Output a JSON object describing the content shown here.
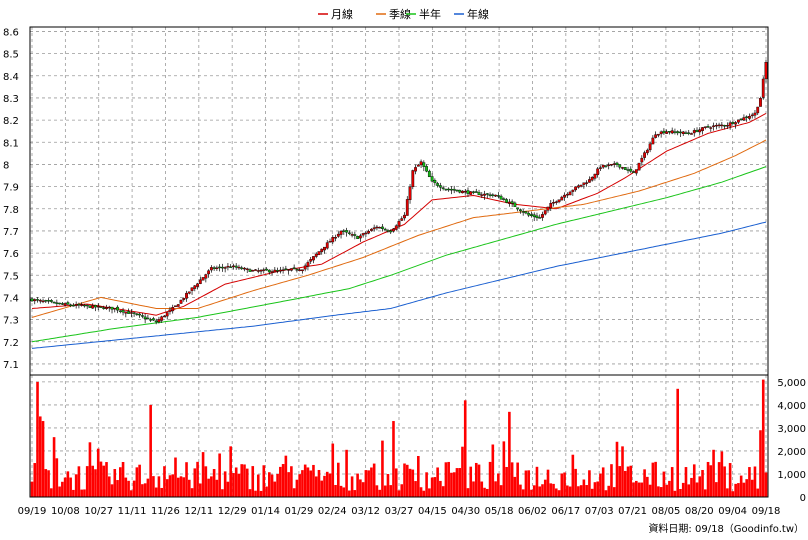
{
  "chart_data": {
    "type": "candlestick",
    "legend": [
      {
        "label": "月線",
        "color": "#d40000"
      },
      {
        "label": "季線",
        "color": "#e06a10"
      },
      {
        "label": "半年",
        "color": "#19c419"
      },
      {
        "label": "年線",
        "color": "#1a5fd0"
      }
    ],
    "price_axis": {
      "ylim": [
        7.05,
        8.62
      ],
      "ticks": [
        8.6,
        8.5,
        8.4,
        8.3,
        8.2,
        8.1,
        8.0,
        7.9,
        7.8,
        7.7,
        7.6,
        7.5,
        7.4,
        7.3,
        7.2,
        7.1
      ],
      "tick_labels": [
        "8.6",
        "8.5",
        "8.4",
        "8.3",
        "8.2",
        "8.1",
        "8",
        "7.9",
        "7.8",
        "7.7",
        "7.6",
        "7.5",
        "7.4",
        "7.3",
        "7.2",
        "7.1"
      ]
    },
    "volume_axis": {
      "ylim": [
        0,
        5300
      ],
      "ticks": [
        0,
        1000,
        2000,
        3000,
        4000,
        5000
      ],
      "tick_labels": [
        "0",
        "1,000",
        "2,000",
        "3,000",
        "4,000",
        "5,000"
      ]
    },
    "x_ticks": [
      "09/19",
      "10/08",
      "10/27",
      "11/11",
      "11/26",
      "12/11",
      "12/29",
      "01/14",
      "01/29",
      "02/24",
      "03/12",
      "03/27",
      "04/15",
      "04/30",
      "05/18",
      "06/02",
      "06/17",
      "07/03",
      "07/21",
      "08/05",
      "08/20",
      "09/04",
      "09/18"
    ],
    "close_anchors": [
      [
        0,
        7.39
      ],
      [
        10,
        7.37
      ],
      [
        20,
        7.36
      ],
      [
        30,
        7.35
      ],
      [
        38,
        7.32
      ],
      [
        45,
        7.29
      ],
      [
        52,
        7.36
      ],
      [
        58,
        7.44
      ],
      [
        65,
        7.53
      ],
      [
        72,
        7.54
      ],
      [
        80,
        7.52
      ],
      [
        90,
        7.52
      ],
      [
        98,
        7.53
      ],
      [
        105,
        7.62
      ],
      [
        112,
        7.7
      ],
      [
        118,
        7.67
      ],
      [
        125,
        7.72
      ],
      [
        130,
        7.7
      ],
      [
        135,
        7.77
      ],
      [
        138,
        7.97
      ],
      [
        141,
        8.01
      ],
      [
        145,
        7.92
      ],
      [
        150,
        7.89
      ],
      [
        160,
        7.87
      ],
      [
        168,
        7.86
      ],
      [
        174,
        7.82
      ],
      [
        180,
        7.77
      ],
      [
        184,
        7.76
      ],
      [
        188,
        7.82
      ],
      [
        195,
        7.88
      ],
      [
        202,
        7.93
      ],
      [
        206,
        7.99
      ],
      [
        212,
        8.0
      ],
      [
        218,
        7.96
      ],
      [
        223,
        8.07
      ],
      [
        226,
        8.14
      ],
      [
        230,
        8.15
      ],
      [
        238,
        8.14
      ],
      [
        245,
        8.17
      ],
      [
        252,
        8.18
      ],
      [
        258,
        8.21
      ],
      [
        262,
        8.23
      ],
      [
        264,
        8.3
      ],
      [
        266,
        8.46
      ]
    ],
    "ma_anchors": {
      "月線": [
        [
          0,
          7.35
        ],
        [
          20,
          7.37
        ],
        [
          45,
          7.32
        ],
        [
          55,
          7.36
        ],
        [
          70,
          7.46
        ],
        [
          90,
          7.52
        ],
        [
          105,
          7.55
        ],
        [
          120,
          7.65
        ],
        [
          135,
          7.73
        ],
        [
          145,
          7.84
        ],
        [
          160,
          7.86
        ],
        [
          175,
          7.82
        ],
        [
          190,
          7.8
        ],
        [
          205,
          7.87
        ],
        [
          215,
          7.94
        ],
        [
          230,
          8.06
        ],
        [
          245,
          8.14
        ],
        [
          260,
          8.19
        ],
        [
          266,
          8.23
        ]
      ],
      "季線": [
        [
          0,
          7.31
        ],
        [
          25,
          7.4
        ],
        [
          45,
          7.35
        ],
        [
          60,
          7.35
        ],
        [
          80,
          7.43
        ],
        [
          100,
          7.5
        ],
        [
          120,
          7.58
        ],
        [
          140,
          7.68
        ],
        [
          160,
          7.76
        ],
        [
          180,
          7.79
        ],
        [
          200,
          7.82
        ],
        [
          220,
          7.88
        ],
        [
          240,
          7.96
        ],
        [
          255,
          8.04
        ],
        [
          266,
          8.11
        ]
      ],
      "半年": [
        [
          0,
          7.2
        ],
        [
          30,
          7.26
        ],
        [
          60,
          7.31
        ],
        [
          90,
          7.38
        ],
        [
          115,
          7.44
        ],
        [
          130,
          7.5
        ],
        [
          150,
          7.59
        ],
        [
          170,
          7.66
        ],
        [
          190,
          7.73
        ],
        [
          210,
          7.79
        ],
        [
          230,
          7.85
        ],
        [
          250,
          7.92
        ],
        [
          266,
          7.99
        ]
      ],
      "年線": [
        [
          0,
          7.17
        ],
        [
          40,
          7.22
        ],
        [
          80,
          7.27
        ],
        [
          110,
          7.32
        ],
        [
          130,
          7.35
        ],
        [
          150,
          7.42
        ],
        [
          170,
          7.48
        ],
        [
          190,
          7.54
        ],
        [
          210,
          7.59
        ],
        [
          230,
          7.64
        ],
        [
          250,
          7.69
        ],
        [
          266,
          7.74
        ]
      ]
    },
    "volume_spikes": [
      [
        2,
        5000
      ],
      [
        3,
        3500
      ],
      [
        4,
        3300
      ],
      [
        8,
        2600
      ],
      [
        24,
        2100
      ],
      [
        43,
        4000
      ],
      [
        131,
        3300
      ],
      [
        157,
        4200
      ],
      [
        173,
        3700
      ],
      [
        214,
        2200
      ],
      [
        234,
        4700
      ],
      [
        264,
        2900
      ],
      [
        265,
        5100
      ]
    ],
    "footer_note": "資料日期: 09/18（Goodinfo.tw）"
  }
}
